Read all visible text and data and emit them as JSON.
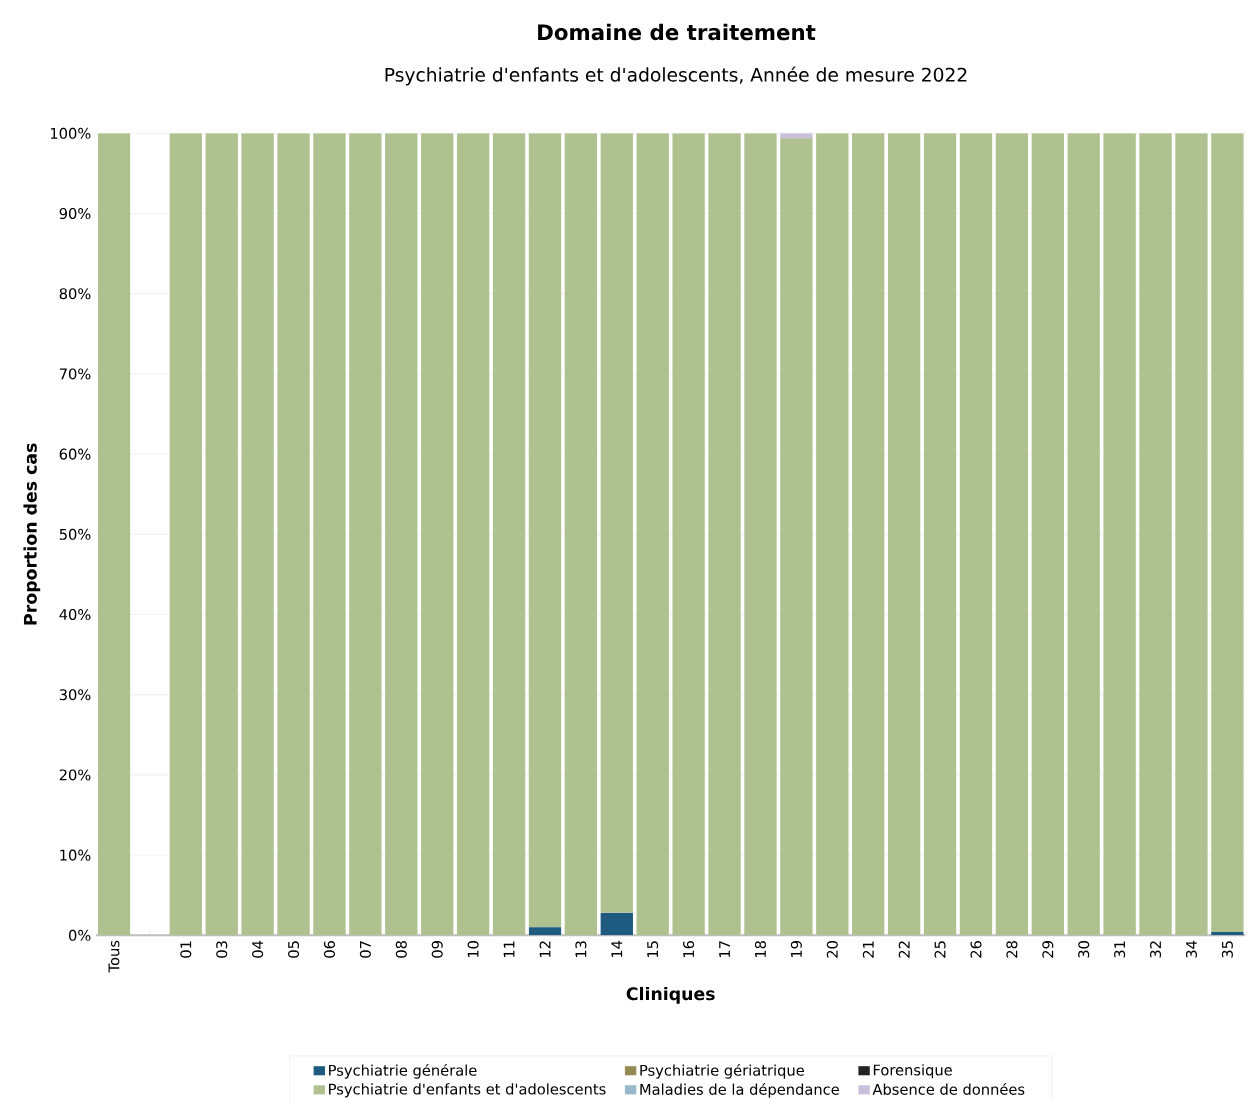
{
  "chart_data": {
    "type": "bar",
    "stacked": true,
    "title": "Domaine de traitement",
    "subtitle": "Psychiatrie d'enfants et d'adolescents, Année de mesure 2022",
    "xlabel": "Cliniques",
    "ylabel": "Proportion des cas",
    "categories": [
      "Tous",
      null,
      "01",
      "03",
      "04",
      "05",
      "06",
      "07",
      "08",
      "09",
      "10",
      "11",
      "12",
      "13",
      "14",
      "15",
      "16",
      "17",
      "18",
      "19",
      "20",
      "21",
      "22",
      "25",
      "26",
      "28",
      "29",
      "30",
      "31",
      "32",
      "34",
      "35"
    ],
    "series": [
      {
        "name": "Psychiatrie générale",
        "color": "#1f5a80",
        "values": [
          0,
          null,
          0,
          0,
          0,
          0,
          0,
          0,
          0,
          0,
          0,
          0,
          1.0,
          0,
          2.8,
          0,
          0,
          0,
          0,
          0,
          0,
          0,
          0,
          0,
          0,
          0,
          0,
          0,
          0,
          0,
          0,
          0.4
        ]
      },
      {
        "name": "Psychiatrie d'enfants et d'adolescents",
        "color": "#afc18f",
        "values": [
          100,
          null,
          100,
          100,
          100,
          100,
          100,
          100,
          100,
          100,
          100,
          100,
          99.0,
          100,
          97.2,
          100,
          100,
          100,
          100,
          99.4,
          100,
          100,
          100,
          100,
          100,
          100,
          100,
          100,
          100,
          100,
          100,
          99.6
        ]
      },
      {
        "name": "Psychiatrie gériatrique",
        "color": "#948a54",
        "values": [
          0,
          null,
          0,
          0,
          0,
          0,
          0,
          0,
          0,
          0,
          0,
          0,
          0,
          0,
          0,
          0,
          0,
          0,
          0,
          0,
          0,
          0,
          0,
          0,
          0,
          0,
          0,
          0,
          0,
          0,
          0,
          0
        ]
      },
      {
        "name": "Maladies de la dépendance",
        "color": "#98b9cb",
        "values": [
          0,
          null,
          0,
          0,
          0,
          0,
          0,
          0,
          0,
          0,
          0,
          0,
          0,
          0,
          0,
          0,
          0,
          0,
          0,
          0,
          0,
          0,
          0,
          0,
          0,
          0,
          0,
          0,
          0,
          0,
          0,
          0
        ]
      },
      {
        "name": "Forensique",
        "color": "#222222",
        "values": [
          0,
          null,
          0,
          0,
          0,
          0,
          0,
          0,
          0,
          0,
          0,
          0,
          0,
          0,
          0,
          0,
          0,
          0,
          0,
          0,
          0,
          0,
          0,
          0,
          0,
          0,
          0,
          0,
          0,
          0,
          0,
          0
        ]
      },
      {
        "name": "Absence de données",
        "color": "#cbc0dc",
        "values": [
          0,
          null,
          0,
          0,
          0,
          0,
          0,
          0,
          0,
          0,
          0,
          0,
          0,
          0,
          0,
          0,
          0,
          0,
          0,
          0.6,
          0,
          0,
          0,
          0,
          0,
          0,
          0,
          0,
          0,
          0,
          0,
          0
        ]
      }
    ],
    "ylim": [
      0,
      100
    ],
    "yticks": [
      {
        "value": 0,
        "label": "0%"
      },
      {
        "value": 10,
        "label": "10%"
      },
      {
        "value": 20,
        "label": "20%"
      },
      {
        "value": 30,
        "label": "30%"
      },
      {
        "value": 40,
        "label": "40%"
      },
      {
        "value": 50,
        "label": "50%"
      },
      {
        "value": 60,
        "label": "60%"
      },
      {
        "value": 70,
        "label": "70%"
      },
      {
        "value": 80,
        "label": "80%"
      },
      {
        "value": 90,
        "label": "90%"
      },
      {
        "value": 100,
        "label": "100%"
      }
    ],
    "grid": "y",
    "legend": "bottom"
  }
}
